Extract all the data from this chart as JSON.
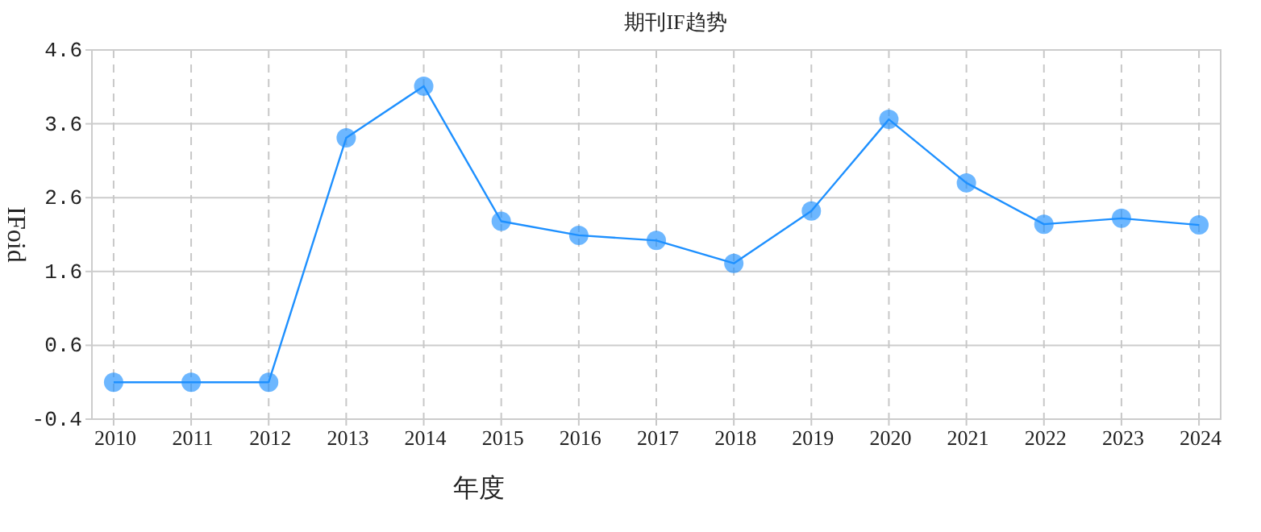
{
  "chart_data": {
    "type": "line",
    "title": "期刊IF趋势",
    "xlabel": "年度",
    "ylabel": "IFoid",
    "categories": [
      "2010",
      "2011",
      "2012",
      "2013",
      "2014",
      "2015",
      "2016",
      "2017",
      "2018",
      "2019",
      "2020",
      "2021",
      "2022",
      "2023",
      "2024"
    ],
    "series": [
      {
        "color": "#1e90ff",
        "values": [
          0.1,
          0.1,
          0.1,
          3.41,
          4.11,
          2.28,
          2.09,
          2.02,
          1.71,
          2.42,
          3.66,
          2.8,
          2.24,
          2.32,
          2.23
        ]
      }
    ],
    "ylim": [
      -0.4,
      4.6
    ],
    "yticks": [
      -0.4,
      0.6,
      1.6,
      2.6,
      3.6,
      4.6
    ],
    "grid": true,
    "marker": "circle",
    "line_style": "solid"
  }
}
